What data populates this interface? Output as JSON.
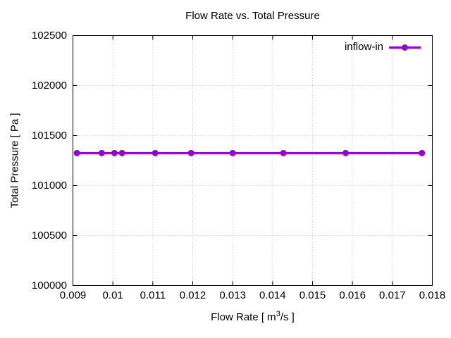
{
  "chart_data": {
    "type": "line",
    "title": "Flow Rate vs. Total Pressure",
    "xlabel": {
      "prefix": "Flow Rate [ m",
      "sup": "3",
      "suffix": "/s ]"
    },
    "ylabel": "Total Pressure [ Pa ]",
    "xlim": [
      0.009,
      0.018
    ],
    "ylim": [
      100000,
      102500
    ],
    "x_ticks": [
      "0.009",
      "0.01",
      "0.011",
      "0.012",
      "0.013",
      "0.014",
      "0.015",
      "0.016",
      "0.017",
      "0.018"
    ],
    "y_ticks": [
      "100000",
      "100500",
      "101000",
      "101500",
      "102000",
      "102500"
    ],
    "grid": true,
    "grid_color": "#bbbbbb",
    "border_color": "#000000",
    "legend_position": "top-right-inside",
    "series": [
      {
        "name": "inflow-in",
        "color": "#9400d3",
        "marker": "filled-circle",
        "x": [
          0.0091,
          0.00972,
          0.01004,
          0.01023,
          0.01106,
          0.01196,
          0.013,
          0.01427,
          0.01583,
          0.01774
        ],
        "y": [
          101325,
          101325,
          101325,
          101325,
          101325,
          101325,
          101325,
          101325,
          101325,
          101325
        ]
      }
    ]
  }
}
